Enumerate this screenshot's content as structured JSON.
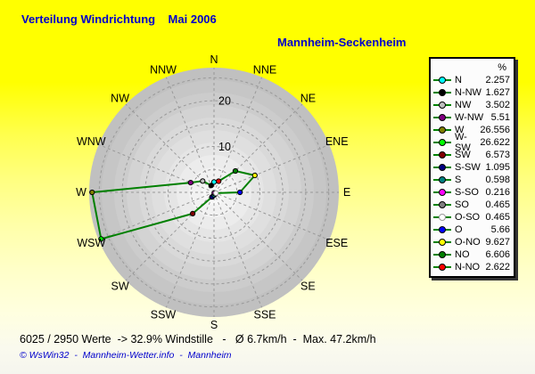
{
  "header": {
    "title": "Verteilung Windrichtung    Mai 2006",
    "station": "Mannheim-Seckenheim"
  },
  "footer": {
    "stats": "6025 / 2950 Werte  -> 32.9% Windstille   -   Ø 6.7km/h  -  Max. 47.2km/h",
    "credit": "© WsWin32  -  Mannheim-Wetter.info  -  Mannheim"
  },
  "legend": {
    "header_percent": "%",
    "entries": [
      {
        "label": "N",
        "value": "2.257",
        "color": "#00FFFF",
        "stroke": "#000000",
        "angle_deg": 0
      },
      {
        "label": "N-NW",
        "value": "1.627",
        "color": "#000000",
        "stroke": "#000000",
        "angle_deg": 337.5
      },
      {
        "label": "NW",
        "value": "3.502",
        "color": "#C0C0C0",
        "stroke": "#000000",
        "angle_deg": 315
      },
      {
        "label": "W-NW",
        "value": "5.51",
        "color": "#800080",
        "stroke": "#000000",
        "angle_deg": 292.5
      },
      {
        "label": "W",
        "value": "26.556",
        "color": "#808000",
        "stroke": "#000000",
        "angle_deg": 270
      },
      {
        "label": "W-SW",
        "value": "26.622",
        "color": "#00FF00",
        "stroke": "#000000",
        "angle_deg": 247.5
      },
      {
        "label": "SW",
        "value": "6.573",
        "color": "#800000",
        "stroke": "#000000",
        "angle_deg": 225
      },
      {
        "label": "S-SW",
        "value": "1.095",
        "color": "#000080",
        "stroke": "#000000",
        "angle_deg": 202.5
      },
      {
        "label": "S",
        "value": "0.598",
        "color": "#008080",
        "stroke": "#000000",
        "angle_deg": 180
      },
      {
        "label": "S-SO",
        "value": "0.216",
        "color": "#FF00FF",
        "stroke": "#000000",
        "angle_deg": 157.5
      },
      {
        "label": "SO",
        "value": "0.465",
        "color": "#808080",
        "stroke": "#000000",
        "angle_deg": 135
      },
      {
        "label": "O-SO",
        "value": "0.465",
        "color": "#FFFFFF",
        "stroke": "#999999",
        "angle_deg": 112.5
      },
      {
        "label": "O",
        "value": "5.66",
        "color": "#0000FF",
        "stroke": "#000000",
        "angle_deg": 90
      },
      {
        "label": "O-NO",
        "value": "9.627",
        "color": "#FFFF00",
        "stroke": "#000000",
        "angle_deg": 67.5
      },
      {
        "label": "NO",
        "value": "6.606",
        "color": "#008000",
        "stroke": "#000000",
        "angle_deg": 45
      },
      {
        "label": "N-NO",
        "value": "2.622",
        "color": "#FF0000",
        "stroke": "#000000",
        "angle_deg": 22.5
      }
    ]
  },
  "chart_data": {
    "type": "radar",
    "polar": true,
    "title": "Verteilung Windrichtung Mai 2006 - Mannheim-Seckenheim",
    "units": "%",
    "categories": [
      "N",
      "N-NW",
      "NW",
      "W-NW",
      "W",
      "W-SW",
      "SW",
      "S-SW",
      "S",
      "S-SO",
      "SO",
      "O-SO",
      "O",
      "O-NO",
      "NO",
      "N-NO"
    ],
    "values": [
      2.257,
      1.627,
      3.502,
      5.51,
      26.556,
      26.622,
      6.573,
      1.095,
      0.598,
      0.216,
      0.465,
      0.465,
      5.66,
      9.627,
      6.606,
      2.622
    ],
    "line_color": "#008000",
    "grid": "dashed",
    "r_axis": {
      "ticks": [
        5,
        10,
        15,
        20,
        25
      ],
      "labeled_ticks": [
        10,
        20
      ],
      "max": 27.2
    },
    "ring_labels": [
      "N",
      "NNE",
      "NE",
      "ENE",
      "E",
      "ESE",
      "SE",
      "SSE",
      "S",
      "SSW",
      "SW",
      "WSW",
      "W",
      "WNW",
      "NW",
      "NNW"
    ]
  },
  "colors": {
    "background_top": "#FFFF00",
    "background_bottom": "#F5F5EE",
    "disc_outer": "#C0C0C0",
    "disc_inner": "#F8F8F8",
    "grid": "#999999",
    "title_blue": "#0000CC",
    "legend_bg": "#FCFCFC"
  }
}
